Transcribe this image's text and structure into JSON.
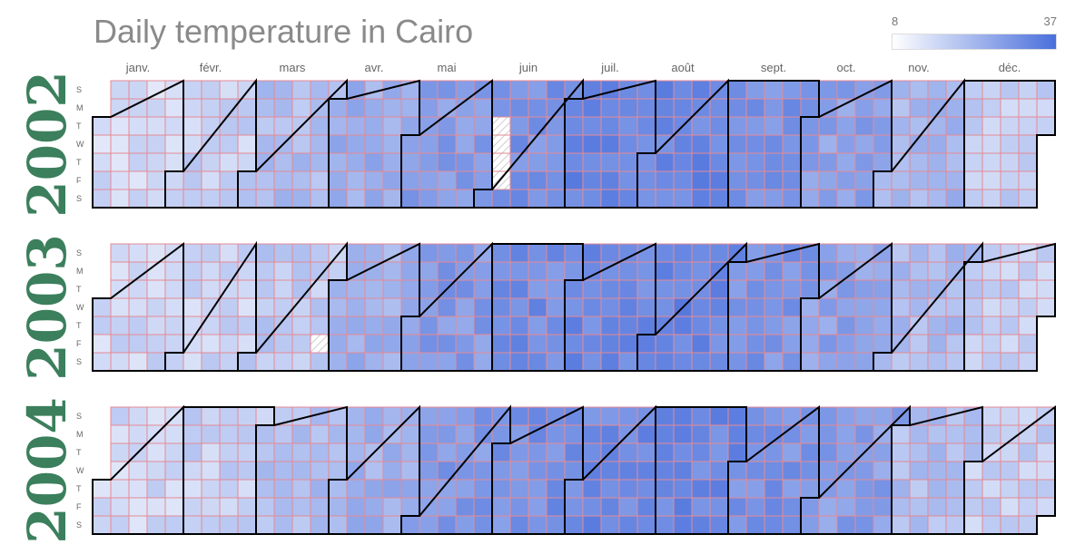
{
  "title": "Daily temperature in Cairo",
  "colors": {
    "low": "#ffffff",
    "high": "#4a6fdc",
    "cell_border": "#e58a94",
    "month_border": "#000000",
    "year_label": "#3b7f5c",
    "missing": "#cccccc"
  },
  "legend": {
    "min_label": "8",
    "max_label": "37"
  },
  "chart_data": {
    "type": "heatmap",
    "title": "Daily temperature in Cairo",
    "color_scale": {
      "min": 8,
      "max": 37
    },
    "months": [
      "janv.",
      "févr.",
      "mars",
      "avr.",
      "mai",
      "juin",
      "juil.",
      "août",
      "sept.",
      "oct.",
      "nov.",
      "déc."
    ],
    "weekdays": [
      "S",
      "M",
      "T",
      "W",
      "T",
      "F",
      "S"
    ],
    "years": [
      {
        "year": "2002",
        "missing_days": [
          "2002-06-04",
          "2002-06-05",
          "2002-06-06",
          "2002-06-07"
        ],
        "monthly_mean": [
          15.5,
          17,
          21,
          24,
          27.5,
          29.5,
          32.5,
          32,
          29.5,
          26.5,
          22.5,
          17.5
        ]
      },
      {
        "year": "2003",
        "missing_days": [
          "2003-03-28"
        ],
        "monthly_mean": [
          16,
          16.5,
          18.5,
          23.5,
          28,
          30.5,
          31.5,
          32,
          29,
          26.5,
          21.5,
          17.5
        ]
      },
      {
        "year": "2004",
        "missing_days": [],
        "monthly_mean": [
          16,
          17,
          21,
          23.5,
          28.5,
          30,
          31.5,
          31.5,
          29.5,
          27,
          21,
          17.5
        ]
      }
    ]
  }
}
